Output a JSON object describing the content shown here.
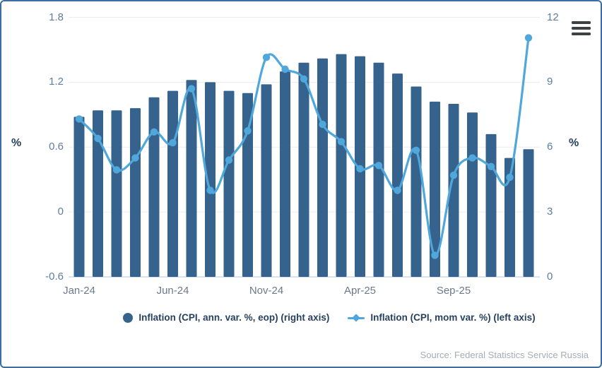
{
  "chart": {
    "left_axis": {
      "label": "%",
      "ticks": [
        "1.8",
        "1.2",
        "0.6",
        "0",
        "-0.6"
      ]
    },
    "right_axis": {
      "label": "%",
      "ticks": [
        "12",
        "9",
        "6",
        "3",
        "0"
      ]
    },
    "x_tick_labels": [
      "Jan-24",
      "Jun-24",
      "Nov-24",
      "Apr-25",
      "Sep-25"
    ]
  },
  "chart_data": {
    "type": "bar+line combo",
    "categories": [
      "Jan-24",
      "Feb-24",
      "Mar-24",
      "Apr-24",
      "May-24",
      "Jun-24",
      "Jul-24",
      "Aug-24",
      "Sep-24",
      "Oct-24",
      "Nov-24",
      "Dec-24",
      "Jan-25",
      "Feb-25",
      "Mar-25",
      "Apr-25",
      "May-25",
      "Jun-25",
      "Jul-25",
      "Aug-25",
      "Sep-25",
      "Oct-25",
      "Nov-25",
      "Dec-25",
      "Jan-26"
    ],
    "series": [
      {
        "name": "Inflation (CPI, ann. var. %, eop) (right axis)",
        "type": "bar",
        "axis": "right",
        "color": "#35638d",
        "values": [
          7.4,
          7.7,
          7.7,
          7.8,
          8.3,
          8.6,
          9.1,
          9.0,
          8.6,
          8.5,
          8.9,
          9.5,
          9.9,
          10.1,
          10.3,
          10.2,
          9.9,
          9.4,
          8.8,
          8.1,
          8.0,
          7.6,
          6.6,
          5.5,
          5.9
        ]
      },
      {
        "name": "Inflation (CPI, mom var. %) (left axis)",
        "type": "line",
        "axis": "left",
        "color": "#4fa7db",
        "values": [
          0.86,
          0.68,
          0.39,
          0.5,
          0.74,
          0.64,
          1.14,
          0.2,
          0.48,
          0.75,
          1.43,
          1.32,
          1.23,
          0.81,
          0.65,
          0.4,
          0.43,
          0.2,
          0.57,
          -0.4,
          0.34,
          0.5,
          0.42,
          0.32,
          1.61
        ]
      }
    ],
    "left_ylim": [
      -0.6,
      1.8
    ],
    "right_ylim": [
      0,
      12
    ],
    "grid": true,
    "legend_position": "bottom",
    "title": ""
  },
  "source_note": "Source: Federal Statistics Service Russia",
  "colors": {
    "bar": "#35638d",
    "line": "#4fa7db",
    "grid": "#eaecef",
    "baseline": "#cbd8eb",
    "navy_text": "#27415f",
    "y_tick_text": "#5e7c9e",
    "x_tick_text": "#6d7989",
    "border": "#3a6ea5",
    "source_text": "#a7acb1",
    "menu_icon": "#3e4144"
  }
}
